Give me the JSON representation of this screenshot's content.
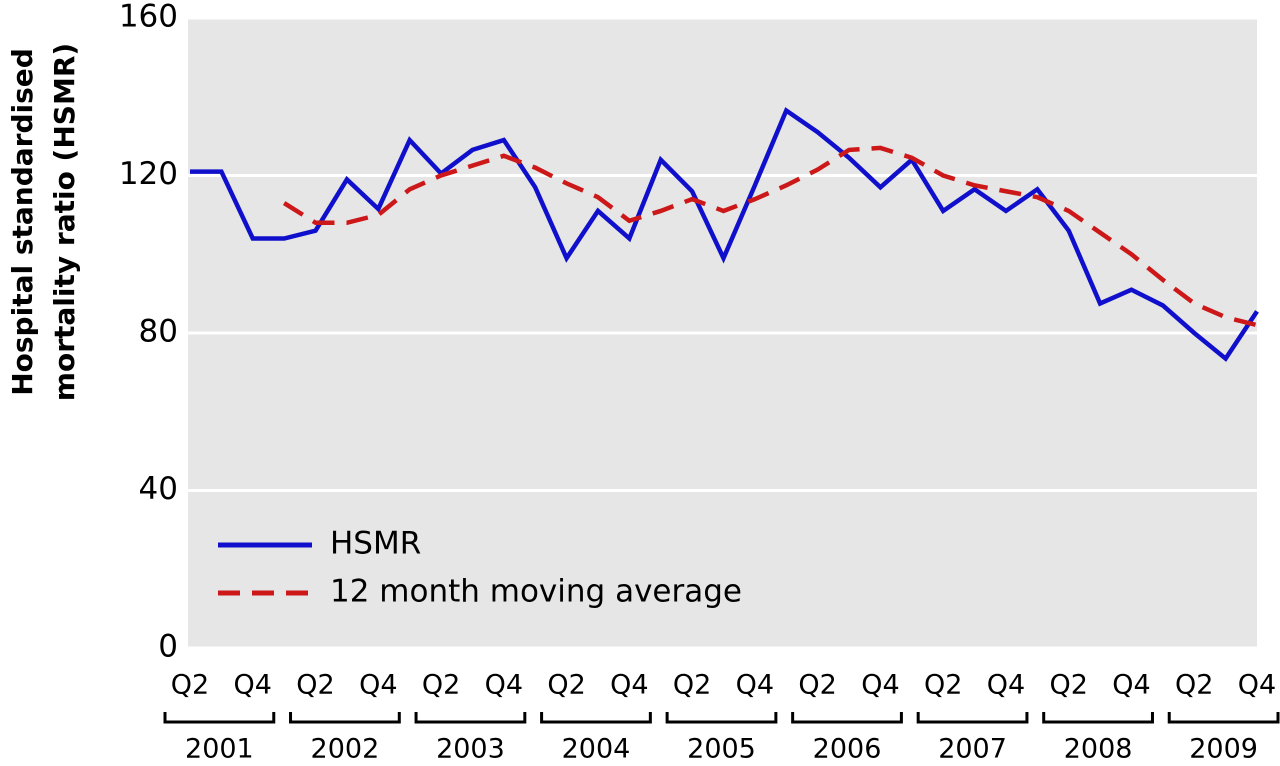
{
  "chart_data": {
    "type": "line",
    "y_label_lines": [
      "Hospital standardised",
      "mortality ratio (HSMR)"
    ],
    "categories": [
      "Q2",
      null,
      "Q4",
      null,
      "Q2",
      null,
      "Q4",
      null,
      "Q2",
      null,
      "Q4",
      null,
      "Q2",
      null,
      "Q4",
      null,
      "Q2",
      null,
      "Q4",
      null,
      "Q2",
      null,
      "Q4",
      null,
      "Q2",
      null,
      "Q4",
      null,
      "Q2",
      null,
      "Q4",
      null,
      "Q2",
      null,
      "Q4"
    ],
    "years": [
      "2001",
      "2002",
      "2003",
      "2004",
      "2005",
      "2006",
      "2007",
      "2008",
      "2009"
    ],
    "series": [
      {
        "name": "HSMR",
        "color": "#1010cc",
        "dash": false,
        "values": [
          121,
          121,
          104,
          104,
          106,
          119,
          111.5,
          129,
          120.5,
          126.5,
          129,
          117,
          99,
          111,
          104,
          124,
          116,
          99,
          117.5,
          136.5,
          131,
          124.5,
          117,
          124,
          111,
          116.5,
          111,
          116.5,
          106,
          87.5,
          91,
          87,
          80,
          73.5,
          85.5
        ]
      },
      {
        "name": "12 month moving average",
        "color": "#cc1818",
        "dash": true,
        "values": [
          null,
          null,
          null,
          113,
          108,
          108,
          110,
          116.5,
          120,
          122.5,
          125,
          122,
          118,
          114.5,
          108.5,
          111,
          114,
          111,
          114,
          117.5,
          121.5,
          126.5,
          127,
          124.5,
          120,
          117.5,
          116,
          114.5,
          111,
          105.5,
          100,
          93.5,
          87.5,
          84,
          82
        ]
      }
    ],
    "ylim": [
      0,
      160
    ],
    "yticks": [
      0,
      40,
      80,
      120,
      160
    ],
    "grid": true,
    "legend": "lower left"
  }
}
